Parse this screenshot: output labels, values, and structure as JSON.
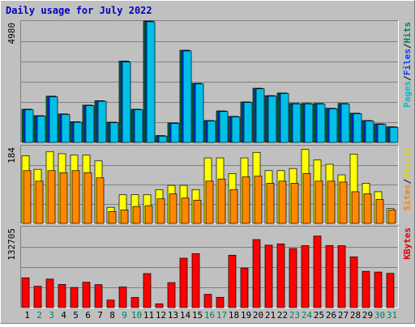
{
  "chart_data": {
    "type": "bar",
    "title": "Daily usage for July 2022",
    "categories": [
      "1",
      "2",
      "3",
      "4",
      "5",
      "6",
      "7",
      "8",
      "9",
      "10",
      "11",
      "12",
      "13",
      "14",
      "15",
      "16",
      "17",
      "18",
      "19",
      "20",
      "21",
      "22",
      "23",
      "24",
      "25",
      "26",
      "27",
      "28",
      "29",
      "30",
      "31"
    ],
    "weekend_days": [
      "2",
      "3",
      "9",
      "10",
      "16",
      "17",
      "23",
      "24",
      "30",
      "31"
    ],
    "panels": [
      {
        "name": "hits_files",
        "ymax_label": "4980",
        "ymax": 4980,
        "side_label": [
          {
            "text": "Pages",
            "color": "#00c0d0"
          },
          {
            "text": "/",
            "color": "#000000"
          },
          {
            "text": "Files",
            "color": "#0040ff"
          },
          {
            "text": "/",
            "color": "#000000"
          },
          {
            "text": "Hits",
            "color": "#00805c"
          }
        ],
        "series": [
          {
            "name": "Hits",
            "color": "#008040",
            "values": [
              1360,
              1100,
              1900,
              1170,
              850,
              1530,
              1710,
              830,
              3340,
              1360,
              4980,
              280,
              800,
              3780,
              2420,
              900,
              1290,
              1070,
              1660,
              2220,
              1920,
              2030,
              1600,
              1600,
              1600,
              1400,
              1600,
              1200,
              900,
              760,
              640
            ]
          },
          {
            "name": "Files",
            "color": "#0040ff",
            "values": [
              1360,
              1100,
              1900,
              1170,
              850,
              1530,
              1710,
              830,
              3340,
              1360,
              4980,
              280,
              800,
              3780,
              2420,
              900,
              1290,
              1070,
              1660,
              2220,
              1920,
              2030,
              1600,
              1600,
              1600,
              1400,
              1600,
              1200,
              900,
              760,
              640
            ]
          },
          {
            "name": "Pages",
            "color": "#00c0e8",
            "values": [
              1340,
              1080,
              1870,
              1150,
              830,
              1510,
              1690,
              810,
              3300,
              1340,
              4950,
              260,
              780,
              3750,
              2400,
              880,
              1270,
              1050,
              1640,
              2200,
              1900,
              2010,
              1580,
              1580,
              1580,
              1380,
              1580,
              1180,
              880,
              740,
              620
            ]
          }
        ]
      },
      {
        "name": "visits_sites",
        "ymax_label": "184",
        "ymax": 184,
        "side_label": [
          {
            "text": "Sites",
            "color": "#ff8000"
          },
          {
            "text": "/",
            "color": "#000000"
          },
          {
            "text": "Visits",
            "color": "#e0d000"
          }
        ],
        "series": [
          {
            "name": "Visits",
            "color": "#ffff00",
            "values": [
              160,
              128,
              170,
              165,
              162,
              162,
              148,
              38,
              68,
              68,
              68,
              80,
              90,
              90,
              80,
              155,
              155,
              118,
              155,
              168,
              125,
              125,
              130,
              175,
              150,
              140,
              115,
              164,
              95,
              75,
              35
            ]
          },
          {
            "name": "Sites",
            "color": "#ff8800",
            "values": [
              125,
              100,
              125,
              120,
              125,
              120,
              108,
              28,
              32,
              40,
              42,
              58,
              70,
              60,
              55,
              100,
              105,
              80,
              110,
              112,
              95,
              100,
              95,
              118,
              100,
              100,
              98,
              75,
              70,
              57,
              32
            ]
          }
        ]
      },
      {
        "name": "kbytes",
        "ymax_label": "132705",
        "ymax": 132705,
        "side_label": [
          {
            "text": "KBytes",
            "color": "#e00000"
          }
        ],
        "series": [
          {
            "name": "KBytes",
            "color": "#ff0000",
            "values": [
              48900,
              35000,
              46700,
              38000,
              33000,
              41500,
              37700,
              12300,
              33800,
              16600,
              55800,
              6300,
              41000,
              81000,
              88500,
              21800,
              16800,
              85800,
              64700,
              111500,
              102300,
              104500,
              96900,
              101500,
              117300,
              101700,
              101500,
              83200,
              59400,
              58300,
              56100
            ]
          }
        ]
      }
    ]
  }
}
